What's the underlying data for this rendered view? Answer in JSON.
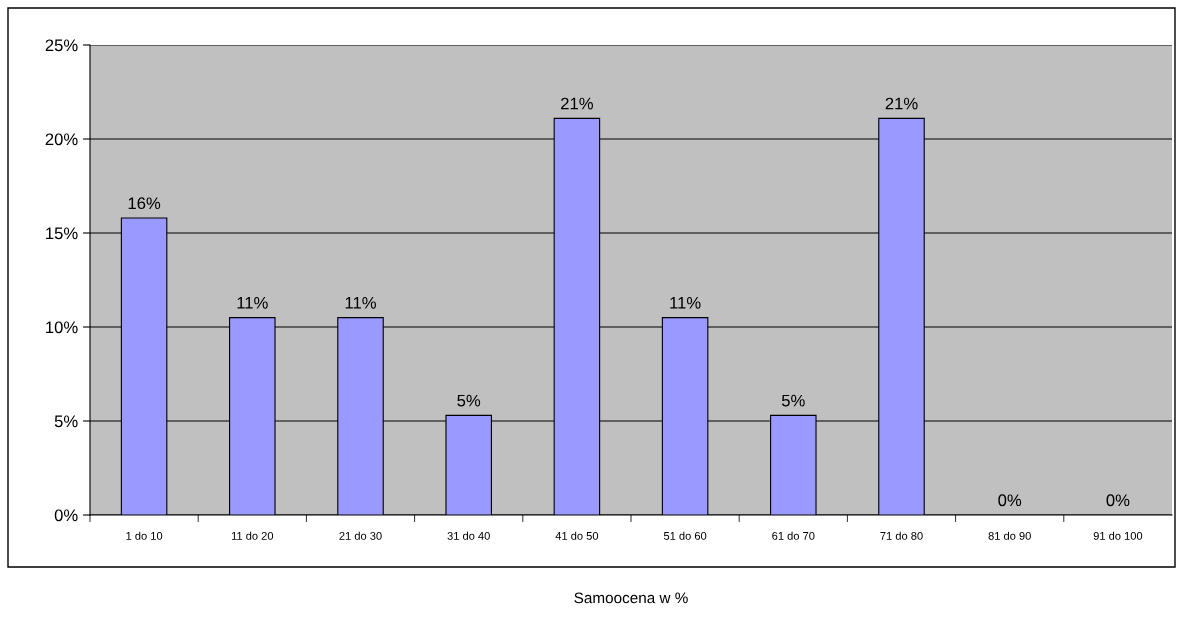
{
  "chart_data": {
    "type": "bar",
    "xlabel": "Samoocena w %",
    "categories": [
      "1 do 10",
      "11 do 20",
      "21 do 30",
      "31 do 40",
      "41 do 50",
      "51 do 60",
      "61 do 70",
      "71 do 80",
      "81 do 90",
      "91 do 100"
    ],
    "values": [
      15.8,
      10.5,
      10.5,
      5.3,
      21.1,
      10.5,
      5.3,
      21.1,
      0,
      0
    ],
    "value_labels": [
      "16%",
      "11%",
      "11%",
      "5%",
      "21%",
      "11%",
      "5%",
      "21%",
      "0%",
      "0%"
    ],
    "color": "#9999ff",
    "ylim": [
      0,
      25
    ],
    "yticks": [
      {
        "value": 0,
        "label": "0%"
      },
      {
        "value": 5,
        "label": "5%"
      },
      {
        "value": 10,
        "label": "10%"
      },
      {
        "value": 15,
        "label": "15%"
      },
      {
        "value": 20,
        "label": "20%"
      },
      {
        "value": 25,
        "label": "25%"
      }
    ],
    "grid": "y",
    "legend": false
  }
}
